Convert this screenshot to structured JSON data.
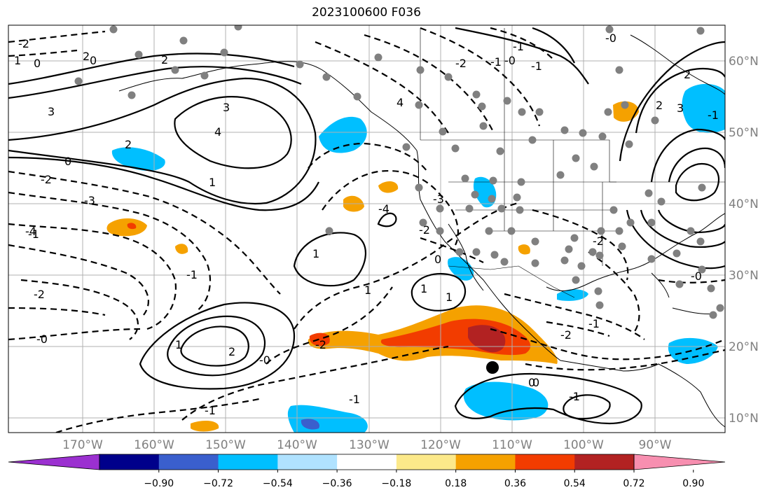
{
  "title": "2023100600 F036",
  "x_ticks": [
    "170°W",
    "160°W",
    "150°W",
    "140°W",
    "130°W",
    "120°W",
    "110°W",
    "100°W",
    "90°W"
  ],
  "y_ticks": [
    "60°N",
    "50°N",
    "40°N",
    "30°N",
    "20°N",
    "10°N"
  ],
  "colorbar": {
    "colors": [
      "#9b30d0",
      "#00008b",
      "#3a5fcd",
      "#00bfff",
      "#b0e2ff",
      "#ffffff",
      "#fce98a",
      "#f5a100",
      "#f23c00",
      "#b22222",
      "#f78fb0"
    ],
    "labels": [
      "−0.90",
      "−0.72",
      "−0.54",
      "−0.36",
      "−0.18",
      "0.18",
      "0.36",
      "0.54",
      "0.72",
      "0.90"
    ]
  },
  "contour_labels": [
    "1",
    "0",
    "2",
    "3",
    "4",
    "2",
    "0",
    "1",
    "2",
    "3",
    "4",
    "-1",
    "-2",
    "-3",
    "-4",
    "0",
    "1",
    "-1",
    "-2",
    "-0",
    "-1",
    "-2",
    "-1",
    "-0",
    "1",
    "2",
    "0",
    "1",
    "-4",
    "-2",
    "-1",
    "-1",
    "-2",
    "2",
    "0",
    "1",
    "-1",
    "-0",
    "-2",
    "-1",
    "-0",
    "-1",
    "-2",
    "-3",
    "2",
    "3",
    "-0",
    "0",
    "-2",
    "-1",
    "0",
    "1"
  ],
  "legend": {
    "marker": "storm center"
  }
}
